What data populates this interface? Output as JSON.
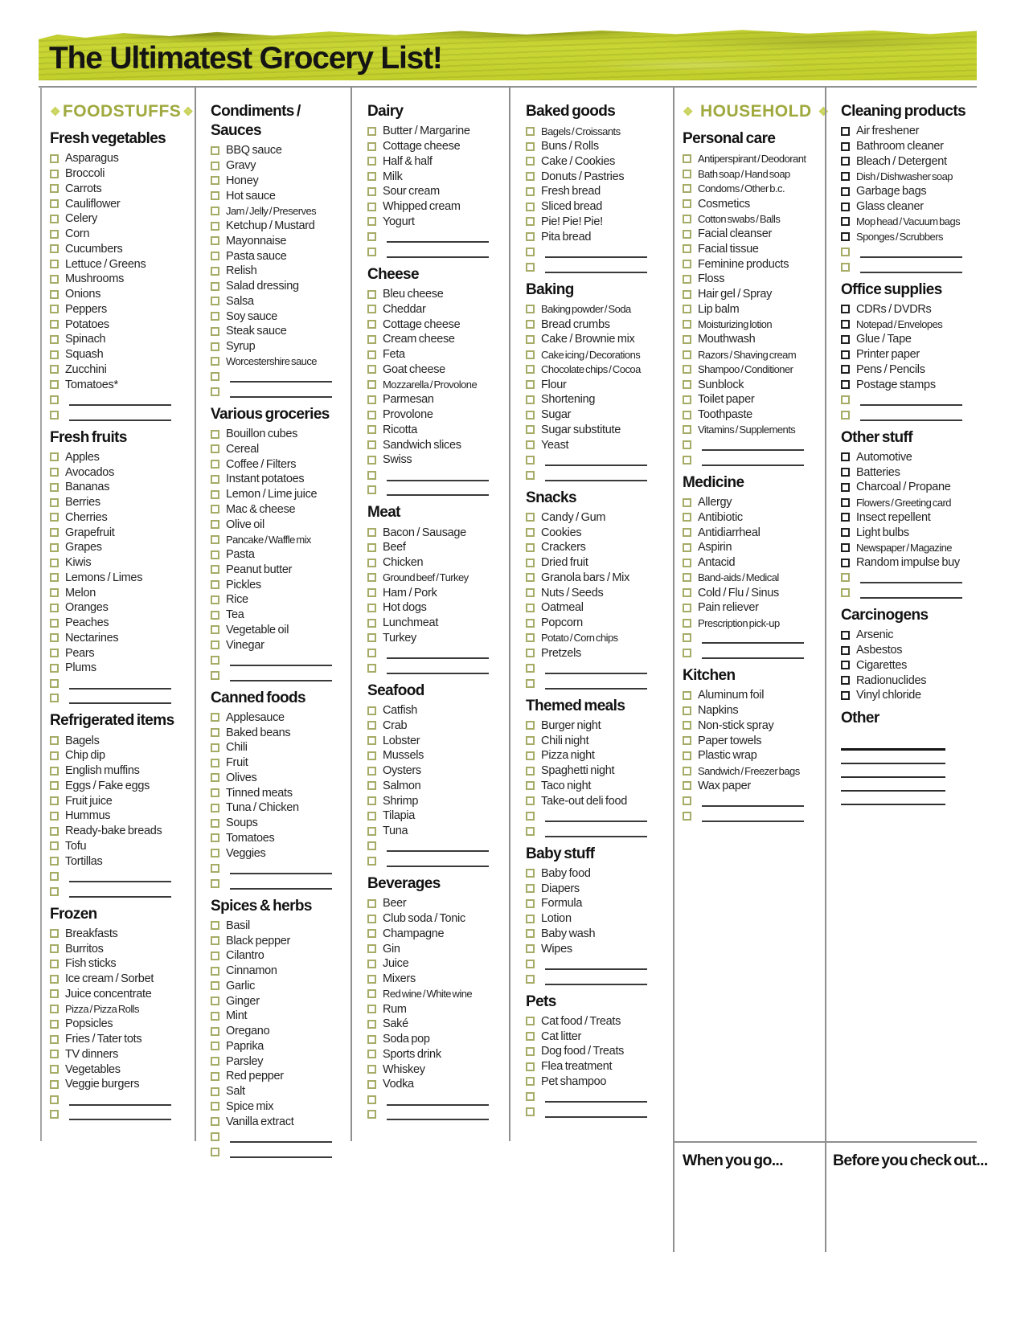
{
  "title": "The Ultimatest Grocery List!",
  "colors": {
    "banner_green": "#c5d22f",
    "accent_green": "#9fa93e",
    "diamond_green": "#c9d35b",
    "checkbox_green": "#a6ab66",
    "checkbox_black": "#1f1f1f",
    "divider_gray": "#8f8f8f"
  },
  "footer": {
    "left_box": "When you go...",
    "right_box": "Before you check out..."
  },
  "columns": [
    {
      "banner": {
        "text": "FOODSTUFFS",
        "diamond": "❖"
      },
      "sections": [
        {
          "title": "Fresh vegetables",
          "checkbox_style": "green",
          "blank_rows": 2,
          "items": [
            "Asparagus",
            "Broccoli",
            "Carrots",
            "Cauliflower",
            "Celery",
            "Corn",
            "Cucumbers",
            "Lettuce / Greens",
            "Mushrooms",
            "Onions",
            "Peppers",
            "Potatoes",
            "Spinach",
            "Squash",
            "Zucchini",
            "Tomatoes*"
          ]
        },
        {
          "title": "Fresh fruits",
          "checkbox_style": "green",
          "blank_rows": 2,
          "items": [
            "Apples",
            "Avocados",
            "Bananas",
            "Berries",
            "Cherries",
            "Grapefruit",
            "Grapes",
            "Kiwis",
            "Lemons / Limes",
            "Melon",
            "Oranges",
            "Peaches",
            "Nectarines",
            "Pears",
            "Plums"
          ]
        },
        {
          "title": "Refrigerated items",
          "checkbox_style": "green",
          "blank_rows": 2,
          "items": [
            "Bagels",
            "Chip dip",
            "English muffins",
            "Eggs / Fake eggs",
            "Fruit juice",
            "Hummus",
            "Ready-bake breads",
            "Tofu",
            "Tortillas"
          ]
        },
        {
          "title": "Frozen",
          "checkbox_style": "green",
          "blank_rows": 2,
          "items": [
            "Breakfasts",
            "Burritos",
            "Fish sticks",
            "Ice cream / Sorbet",
            "Juice concentrate",
            "Pizza / Pizza Rolls",
            "Popsicles",
            "Fries / Tater tots",
            "TV dinners",
            "Vegetables",
            "Veggie burgers"
          ]
        }
      ]
    },
    {
      "sections": [
        {
          "title": "Condiments / Sauces",
          "checkbox_style": "green",
          "blank_rows": 2,
          "items": [
            "BBQ sauce",
            "Gravy",
            "Honey",
            "Hot sauce",
            "Jam / Jelly / Preserves",
            "Ketchup / Mustard",
            "Mayonnaise",
            "Pasta sauce",
            "Relish",
            "Salad dressing",
            "Salsa",
            "Soy sauce",
            "Steak sauce",
            "Syrup",
            "Worcestershire sauce"
          ]
        },
        {
          "title": "Various groceries",
          "checkbox_style": "green",
          "blank_rows": 2,
          "items": [
            "Bouillon cubes",
            "Cereal",
            "Coffee / Filters",
            "Instant potatoes",
            "Lemon / Lime juice",
            "Mac & cheese",
            "Olive oil",
            "Pancake / Waffle mix",
            "Pasta",
            "Peanut butter",
            "Pickles",
            "Rice",
            "Tea",
            "Vegetable oil",
            "Vinegar"
          ]
        },
        {
          "title": "Canned foods",
          "checkbox_style": "green",
          "blank_rows": 2,
          "items": [
            "Applesauce",
            "Baked beans",
            "Chili",
            "Fruit",
            "Olives",
            "Tinned meats",
            "Tuna / Chicken",
            "Soups",
            "Tomatoes",
            "Veggies"
          ]
        },
        {
          "title": "Spices & herbs",
          "checkbox_style": "green",
          "blank_rows": 2,
          "items": [
            "Basil",
            "Black pepper",
            "Cilantro",
            "Cinnamon",
            "Garlic",
            "Ginger",
            "Mint",
            "Oregano",
            "Paprika",
            "Parsley",
            "Red pepper",
            "Salt",
            "Spice mix",
            "Vanilla extract"
          ]
        }
      ]
    },
    {
      "sections": [
        {
          "title": "Dairy",
          "checkbox_style": "green",
          "blank_rows": 2,
          "items": [
            "Butter / Margarine",
            "Cottage cheese",
            "Half & half",
            "Milk",
            "Sour cream",
            "Whipped cream",
            "Yogurt"
          ]
        },
        {
          "title": "Cheese",
          "checkbox_style": "green",
          "blank_rows": 2,
          "items": [
            "Bleu cheese",
            "Cheddar",
            "Cottage cheese",
            "Cream cheese",
            "Feta",
            "Goat cheese",
            "Mozzarella / Provolone",
            "Parmesan",
            "Provolone",
            "Ricotta",
            "Sandwich slices",
            "Swiss"
          ]
        },
        {
          "title": "Meat",
          "checkbox_style": "green",
          "blank_rows": 2,
          "items": [
            "Bacon / Sausage",
            "Beef",
            "Chicken",
            "Ground beef / Turkey",
            "Ham / Pork",
            "Hot dogs",
            "Lunchmeat",
            "Turkey"
          ]
        },
        {
          "title": "Seafood",
          "checkbox_style": "green",
          "blank_rows": 2,
          "items": [
            "Catfish",
            "Crab",
            "Lobster",
            "Mussels",
            "Oysters",
            "Salmon",
            "Shrimp",
            "Tilapia",
            "Tuna"
          ]
        },
        {
          "title": "Beverages",
          "checkbox_style": "green",
          "blank_rows": 2,
          "items": [
            "Beer",
            "Club soda / Tonic",
            "Champagne",
            "Gin",
            "Juice",
            "Mixers",
            "Red wine / White wine",
            "Rum",
            "Saké",
            "Soda pop",
            "Sports drink",
            "Whiskey",
            "Vodka"
          ]
        }
      ]
    },
    {
      "sections": [
        {
          "title": "Baked goods",
          "checkbox_style": "green",
          "blank_rows": 2,
          "items": [
            "Bagels / Croissants",
            "Buns / Rolls",
            "Cake / Cookies",
            "Donuts / Pastries",
            "Fresh bread",
            "Sliced bread",
            "Pie! Pie! Pie!",
            "Pita bread"
          ]
        },
        {
          "title": "Baking",
          "checkbox_style": "green",
          "blank_rows": 2,
          "items": [
            "Baking powder / Soda",
            "Bread crumbs",
            "Cake / Brownie mix",
            "Cake icing / Decorations",
            "Chocolate chips / Cocoa",
            "Flour",
            "Shortening",
            "Sugar",
            "Sugar substitute",
            "Yeast"
          ]
        },
        {
          "title": "Snacks",
          "checkbox_style": "green",
          "blank_rows": 2,
          "items": [
            "Candy / Gum",
            "Cookies",
            "Crackers",
            "Dried fruit",
            "Granola bars / Mix",
            "Nuts / Seeds",
            "Oatmeal",
            "Popcorn",
            "Potato / Corn chips",
            "Pretzels"
          ]
        },
        {
          "title": "Themed meals",
          "checkbox_style": "green",
          "blank_rows": 2,
          "items": [
            "Burger night",
            "Chili night",
            "Pizza night",
            "Spaghetti night",
            "Taco night",
            "Take-out deli food"
          ]
        },
        {
          "title": "Baby stuff",
          "checkbox_style": "green",
          "blank_rows": 2,
          "items": [
            "Baby food",
            "Diapers",
            "Formula",
            "Lotion",
            "Baby wash",
            "Wipes"
          ]
        },
        {
          "title": "Pets",
          "checkbox_style": "green",
          "blank_rows": 2,
          "items": [
            "Cat food / Treats",
            "Cat litter",
            "Dog food / Treats",
            "Flea treatment",
            "Pet shampoo"
          ]
        }
      ]
    },
    {
      "banner": {
        "text": "HOUSEHOLD",
        "diamond": "❖"
      },
      "sections": [
        {
          "title": "Personal care",
          "checkbox_style": "green",
          "blank_rows": 2,
          "items": [
            "Antiperspirant / Deodorant",
            "Bath soap / Hand soap",
            "Condoms / Other b.c.",
            "Cosmetics",
            "Cotton swabs / Balls",
            "Facial cleanser",
            "Facial tissue",
            "Feminine products",
            "Floss",
            "Hair gel / Spray",
            "Lip balm",
            "Moisturizing lotion",
            "Mouthwash",
            "Razors / Shaving cream",
            "Shampoo / Conditioner",
            "Sunblock",
            "Toilet paper",
            "Toothpaste",
            "Vitamins / Supplements"
          ]
        },
        {
          "title": "Medicine",
          "checkbox_style": "green",
          "blank_rows": 2,
          "items": [
            "Allergy",
            "Antibiotic",
            "Antidiarrheal",
            "Aspirin",
            "Antacid",
            "Band-aids / Medical",
            "Cold / Flu / Sinus",
            "Pain reliever",
            "Prescription pick-up"
          ]
        },
        {
          "title": "Kitchen",
          "checkbox_style": "green",
          "blank_rows": 2,
          "items": [
            "Aluminum foil",
            "Napkins",
            "Non-stick spray",
            "Paper towels",
            "Plastic wrap",
            "Sandwich / Freezer bags",
            "Wax paper"
          ]
        }
      ]
    },
    {
      "sections": [
        {
          "title": "Cleaning products",
          "checkbox_style": "black",
          "blank_rows": 2,
          "items": [
            "Air freshener",
            "Bathroom cleaner",
            "Bleach / Detergent",
            "Dish / Dishwasher soap",
            "Garbage bags",
            "Glass cleaner",
            "Mop head / Vacuum bags",
            "Sponges / Scrubbers"
          ]
        },
        {
          "title": "Office supplies",
          "checkbox_style": "black",
          "blank_rows": 2,
          "items": [
            "CDRs / DVDRs",
            "Notepad / Envelopes",
            "Glue / Tape",
            "Printer paper",
            "Pens / Pencils",
            "Postage stamps"
          ]
        },
        {
          "title": "Other stuff",
          "checkbox_style": "black",
          "blank_rows": 2,
          "items": [
            "Automotive",
            "Batteries",
            "Charcoal / Propane",
            "Flowers / Greeting card",
            "Insect repellent",
            "Light bulbs",
            "Newspaper / Magazine",
            "Random impulse buy"
          ]
        },
        {
          "title": "Carcinogens",
          "checkbox_style": "black",
          "blank_rows": 0,
          "items": [
            "Arsenic",
            "Asbestos",
            "Cigarettes",
            "Radionuclides",
            "Vinyl chloride"
          ]
        },
        {
          "title": "Other",
          "checkbox_style": "black",
          "blank_rows": 0,
          "items": [],
          "write_in_lines": 5
        }
      ]
    }
  ]
}
